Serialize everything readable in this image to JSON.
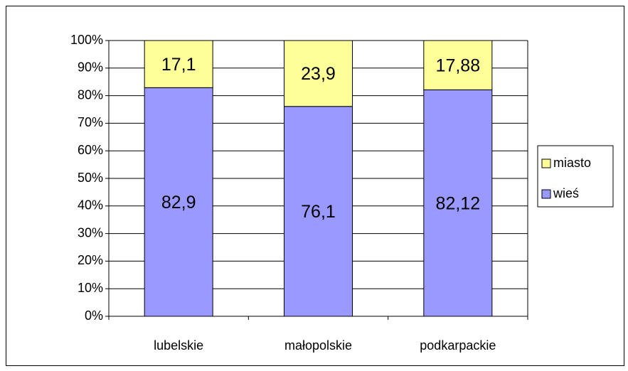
{
  "chart_data": {
    "type": "stacked_bar",
    "categories": [
      "lubelskie",
      "małopolskie",
      "podkarpackie"
    ],
    "series": [
      {
        "name": "wieś",
        "color": "#9999ff",
        "values": [
          82.9,
          76.1,
          82.12
        ],
        "value_labels": [
          "82,9",
          "76,1",
          "82,12"
        ]
      },
      {
        "name": "miasto",
        "color": "#ffff99",
        "values": [
          17.1,
          23.9,
          17.88
        ],
        "value_labels": [
          "17,1",
          "23,9",
          "17,88"
        ]
      }
    ],
    "ylim": [
      0,
      100
    ],
    "yticks": [
      {
        "value": 0,
        "label": "0%"
      },
      {
        "value": 10,
        "label": "10%"
      },
      {
        "value": 20,
        "label": "20%"
      },
      {
        "value": 30,
        "label": "30%"
      },
      {
        "value": 40,
        "label": "40%"
      },
      {
        "value": 50,
        "label": "50%"
      },
      {
        "value": 60,
        "label": "60%"
      },
      {
        "value": 70,
        "label": "70%"
      },
      {
        "value": 80,
        "label": "80%"
      },
      {
        "value": 90,
        "label": "90%"
      },
      {
        "value": 100,
        "label": "100%"
      }
    ],
    "grid": true,
    "legend": "right"
  }
}
